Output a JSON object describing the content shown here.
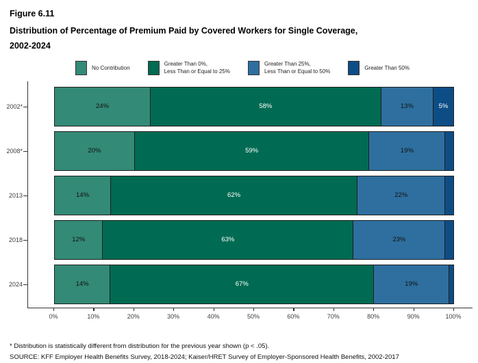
{
  "figure_label": "Figure 6.11",
  "title_line1": "Distribution of Percentage of Premium Paid by Covered Workers for Single Coverage,",
  "title_line2": "2002-2024",
  "legend": [
    {
      "line1": "No Contribution",
      "line2": "",
      "color": "#338A76"
    },
    {
      "line1": "Greater Than 0%,",
      "line2": "Less Than or Equal to 25%",
      "color": "#006B52"
    },
    {
      "line1": "Greater Than 25%,",
      "line2": "Less Than or Equal to 50%",
      "color": "#2E6F9F"
    },
    {
      "line1": "Greater Than 50%",
      "line2": "",
      "color": "#0D4D86"
    }
  ],
  "chart_data": {
    "type": "bar",
    "orientation": "horizontal-stacked",
    "title": "Distribution of Percentage of Premium Paid by Covered Workers for Single Coverage, 2002-2024",
    "categories": [
      "No Contribution",
      "Greater Than 0%, Less Than or Equal to 25%",
      "Greater Than 25%, Less Than or Equal to 50%",
      "Greater Than 50%"
    ],
    "series_colors": [
      "#338A76",
      "#006B52",
      "#2E6F9F",
      "#0D4D86"
    ],
    "label_text_colors": [
      "#101010",
      "#ffffff",
      "#101010",
      "#ffffff"
    ],
    "rows": [
      {
        "year": "2002*",
        "values": [
          24,
          58,
          13,
          5
        ],
        "labels": [
          "24%",
          "58%",
          "13%",
          "5%"
        ]
      },
      {
        "year": "2008*",
        "values": [
          20,
          59,
          19,
          2
        ],
        "labels": [
          "20%",
          "59%",
          "19%",
          ""
        ]
      },
      {
        "year": "2013",
        "values": [
          14,
          62,
          22,
          2
        ],
        "labels": [
          "14%",
          "62%",
          "22%",
          ""
        ]
      },
      {
        "year": "2018",
        "values": [
          12,
          63,
          23,
          2
        ],
        "labels": [
          "12%",
          "63%",
          "23%",
          ""
        ]
      },
      {
        "year": "2024",
        "values": [
          14,
          67,
          19,
          1
        ],
        "labels": [
          "14%",
          "67%",
          "19%",
          ""
        ]
      }
    ],
    "x_ticks": [
      "0%",
      "10%",
      "20%",
      "30%",
      "40%",
      "50%",
      "60%",
      "70%",
      "80%",
      "90%",
      "100%"
    ],
    "xlim": [
      0,
      100
    ],
    "grid": false,
    "legend_position": "top"
  },
  "footnotes": {
    "note": "* Distribution is statistically different from distribution for the previous year shown (p < .05).",
    "source": "SOURCE: KFF Employer Health Benefits Survey, 2018-2024; Kaiser/HRET Survey of Employer-Sponsored Health Benefits, 2002-2017"
  }
}
